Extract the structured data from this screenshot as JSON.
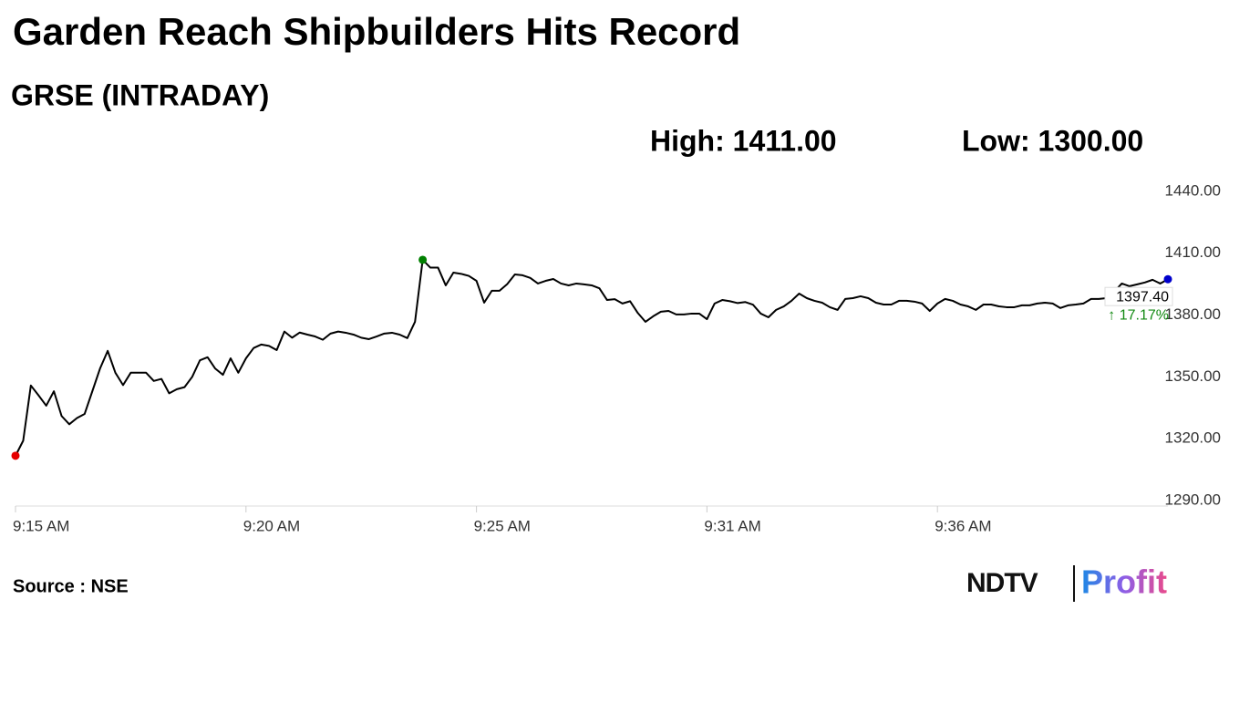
{
  "chart_data": {
    "type": "line",
    "title": "Garden Reach Shipbuilders Hits Record",
    "subtitle": "GRSE (INTRADAY)",
    "high_text": "High: 1411.00",
    "low_text": "Low: 1300.00",
    "source": "Source : NSE",
    "logo": {
      "left": "NDTV",
      "right": "Profit"
    },
    "last_price_label": "1397.40",
    "change_label": "↑ 17.17%",
    "line_color": "#000000",
    "marker_colors": {
      "first": "#e60000",
      "high": "#008000",
      "last": "#0000cc"
    },
    "grid": false,
    "categories": [
      "9:15 AM",
      null,
      null,
      null,
      null,
      null,
      null,
      null,
      null,
      null,
      null,
      null,
      null,
      null,
      null,
      null,
      null,
      null,
      null,
      null,
      null,
      null,
      null,
      null,
      null,
      null,
      null,
      null,
      null,
      null,
      "9:20 AM",
      null,
      null,
      null,
      null,
      null,
      null,
      null,
      null,
      null,
      null,
      null,
      null,
      null,
      null,
      null,
      null,
      null,
      null,
      null,
      null,
      null,
      null,
      null,
      null,
      null,
      null,
      null,
      null,
      null,
      "9:25 AM",
      null,
      null,
      null,
      null,
      null,
      null,
      null,
      null,
      null,
      null,
      null,
      null,
      null,
      null,
      null,
      null,
      null,
      null,
      null,
      null,
      null,
      null,
      null,
      null,
      null,
      null,
      null,
      null,
      null,
      "9:31 AM",
      null,
      null,
      null,
      null,
      null,
      null,
      null,
      null,
      null,
      null,
      null,
      null,
      null,
      null,
      null,
      null,
      null,
      null,
      null,
      null,
      null,
      null,
      null,
      null,
      null,
      null,
      null,
      null,
      null,
      "9:36 AM",
      null,
      null,
      null,
      null,
      null,
      null,
      null,
      null,
      null,
      null,
      null,
      null,
      null,
      null,
      null,
      null,
      null,
      null,
      null,
      null,
      null,
      null,
      null,
      null,
      null,
      null,
      null,
      null,
      null,
      null
    ],
    "values": [
      1311.7,
      1319,
      1345.8,
      1341,
      1336,
      1343,
      1331,
      1327,
      1330,
      1332,
      1343,
      1354,
      1362.6,
      1352,
      1346,
      1352,
      1352,
      1352,
      1348,
      1349,
      1342,
      1344,
      1345,
      1350,
      1358,
      1359.5,
      1354,
      1351,
      1359,
      1352,
      1359,
      1364,
      1365.7,
      1365,
      1363,
      1372,
      1369,
      1371.5,
      1370.5,
      1369.6,
      1368,
      1371,
      1372,
      1371.4,
      1370.5,
      1369,
      1368.3,
      1369.6,
      1371,
      1371.4,
      1370.5,
      1368.8,
      1376.7,
      1406.8,
      1403,
      1403,
      1394.4,
      1400.6,
      1400,
      1399,
      1396.6,
      1386,
      1391.8,
      1391.8,
      1395,
      1399.7,
      1399.3,
      1398,
      1395.3,
      1396.6,
      1397.5,
      1395.3,
      1394.4,
      1395.3,
      1394.9,
      1394.4,
      1393,
      1387.3,
      1387.7,
      1385.6,
      1386.7,
      1381,
      1376.7,
      1379.4,
      1381.6,
      1382,
      1380.3,
      1380.3,
      1380.7,
      1380.7,
      1378,
      1385.6,
      1387.3,
      1386.7,
      1385.8,
      1386.3,
      1385,
      1380.7,
      1378.9,
      1382.5,
      1384.2,
      1386.9,
      1390.4,
      1388.2,
      1386.9,
      1386,
      1383.8,
      1382.5,
      1387.8,
      1388.2,
      1389.1,
      1388.2,
      1386,
      1385.1,
      1385.1,
      1386.9,
      1386.9,
      1386.5,
      1385.6,
      1382,
      1385.6,
      1387.8,
      1386.9,
      1385.1,
      1384.2,
      1382.5,
      1385.1,
      1385.1,
      1384.2,
      1383.8,
      1383.8,
      1384.7,
      1384.7,
      1385.6,
      1386,
      1385.6,
      1383.4,
      1384.7,
      1385.1,
      1385.6,
      1387.8,
      1387.8,
      1388.2,
      1391.3,
      1395.3,
      1394,
      1394.9,
      1395.8,
      1397.1,
      1395.3,
      1397.4
    ],
    "ylim": [
      1287.3,
      1444.4
    ],
    "yticks": [
      {
        "value": 1290,
        "label": "1290.00"
      },
      {
        "value": 1320,
        "label": "1320.00"
      },
      {
        "value": 1350,
        "label": "1350.00"
      },
      {
        "value": 1380,
        "label": "1380.00"
      },
      {
        "value": 1410,
        "label": "1410.00"
      },
      {
        "value": 1440,
        "label": "1440.00"
      }
    ]
  }
}
